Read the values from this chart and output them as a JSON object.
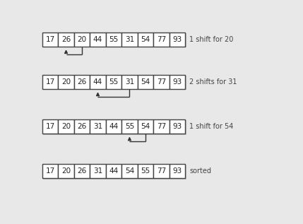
{
  "rows": [
    [
      17,
      26,
      20,
      44,
      55,
      31,
      54,
      77,
      93
    ],
    [
      17,
      20,
      26,
      44,
      55,
      31,
      54,
      77,
      93
    ],
    [
      17,
      20,
      26,
      31,
      44,
      55,
      54,
      77,
      93
    ],
    [
      17,
      20,
      26,
      31,
      44,
      54,
      55,
      77,
      93
    ]
  ],
  "labels": [
    "1 shift for 20",
    "2 shifts for 31",
    "1 shift for 54",
    "sorted"
  ],
  "arrows": [
    {
      "from_col": 2,
      "to_col": 1,
      "row": 0
    },
    {
      "from_col": 5,
      "to_col": 3,
      "row": 1
    },
    {
      "from_col": 6,
      "to_col": 5,
      "row": 2
    }
  ],
  "bg_color": "#e8e8e8",
  "box_facecolor": "#ffffff",
  "box_edgecolor": "#444444",
  "text_color": "#222222",
  "label_color": "#444444",
  "arrow_color": "#333333",
  "num_cols": 9,
  "num_rows": 4,
  "font_size": 7.5,
  "label_font_size": 7.0
}
